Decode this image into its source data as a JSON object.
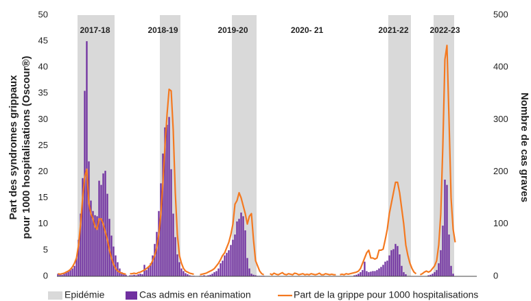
{
  "chart_data": {
    "type": "combo",
    "ylabel": [
      "Part des syndromes grippaux",
      "pour 1000 hospitalisations (Oscour®)"
    ],
    "y2label": "Nombre de cas graves",
    "ylim": [
      0,
      50
    ],
    "yticks": [
      0,
      5,
      10,
      15,
      20,
      25,
      30,
      35,
      40,
      45,
      50
    ],
    "y2lim": [
      0,
      500
    ],
    "y2ticks": [
      0,
      100,
      200,
      300,
      400,
      500
    ],
    "bands": {
      "name": "Epidémie",
      "color": "#d9d9d9",
      "ranges": [
        [
          10,
          27
        ],
        [
          50,
          59
        ],
        [
          85,
          96
        ],
        [
          161,
          171
        ],
        [
          183,
          192
        ]
      ]
    },
    "annotations": [
      {
        "text": "2017-18",
        "x": 18,
        "y": 47
      },
      {
        "text": "2018-19",
        "x": 51,
        "y": 47
      },
      {
        "text": "2019-20",
        "x": 85,
        "y": 47
      },
      {
        "text": "2020- 21",
        "x": 121,
        "y": 47
      },
      {
        "text": "2021-22",
        "x": 163,
        "y": 47
      },
      {
        "text": "2022-23",
        "x": 188,
        "y": 47
      }
    ],
    "series": [
      {
        "name": "Cas admis en réanimation",
        "color": "#7030a0",
        "axis": "y2",
        "kind": "bar",
        "values": [
          5,
          5,
          3,
          5,
          8,
          10,
          12,
          15,
          20,
          35,
          70,
          120,
          188,
          355,
          450,
          220,
          145,
          125,
          117,
          115,
          183,
          175,
          197,
          202,
          158,
          110,
          78,
          57,
          40,
          27,
          15,
          8,
          5,
          3,
          null,
          2,
          2,
          3,
          2,
          4,
          5,
          4,
          22,
          12,
          18,
          25,
          40,
          62,
          85,
          125,
          178,
          235,
          285,
          290,
          305,
          205,
          120,
          75,
          42,
          27,
          15,
          10,
          6,
          4,
          2,
          1,
          1,
          null,
          null,
          1,
          1,
          2,
          1,
          2,
          3,
          5,
          8,
          10,
          15,
          25,
          30,
          40,
          45,
          50,
          60,
          70,
          80,
          105,
          110,
          122,
          115,
          88,
          35,
          15,
          5,
          3,
          2,
          1,
          1,
          1,
          1,
          null,
          null,
          null,
          null,
          null,
          null,
          null,
          null,
          null,
          null,
          null,
          null,
          null,
          null,
          null,
          null,
          null,
          null,
          null,
          null,
          null,
          null,
          null,
          null,
          null,
          null,
          null,
          null,
          null,
          null,
          null,
          null,
          null,
          null,
          null,
          null,
          null,
          null,
          null,
          null,
          null,
          null,
          null,
          2,
          3,
          5,
          8,
          12,
          28,
          10,
          8,
          9,
          10,
          10,
          12,
          15,
          18,
          22,
          28,
          30,
          40,
          50,
          52,
          62,
          58,
          42,
          20,
          8,
          4,
          null,
          null,
          null,
          null,
          null,
          null,
          null,
          null,
          null,
          null,
          2,
          3,
          5,
          8,
          12,
          25,
          50,
          97,
          185,
          175,
          80,
          20,
          5,
          null,
          null,
          null,
          null,
          null,
          null,
          null,
          null,
          null,
          null,
          null
        ]
      },
      {
        "name": "Part de la grippe pour 1000 hospitalisations",
        "color": "#f47920",
        "kind": "line",
        "values": [
          0.5,
          0.4,
          0.5,
          0.6,
          0.8,
          1,
          1.3,
          1.8,
          2.5,
          3.5,
          6,
          10,
          15,
          19,
          20.5,
          14,
          12,
          11,
          9.5,
          9,
          11,
          11,
          10,
          8.5,
          7,
          5,
          3.5,
          2.3,
          1.5,
          1,
          0.8,
          0.6,
          0.5,
          0.4,
          null,
          0.5,
          0.5,
          0.6,
          0.5,
          0.7,
          0.8,
          1,
          1.2,
          1.5,
          1.8,
          2.2,
          3,
          4,
          5.5,
          8,
          12,
          18,
          25,
          31,
          35.8,
          35.5,
          28,
          16,
          8,
          4,
          2.5,
          1.5,
          1,
          0.8,
          0.6,
          0.5,
          0.4,
          null,
          null,
          0.3,
          0.4,
          0.5,
          0.6,
          0.8,
          1,
          1.2,
          1.5,
          2,
          2.5,
          3.2,
          4,
          4.5,
          5.5,
          6.5,
          8,
          10,
          13.8,
          14.5,
          16,
          15,
          13.5,
          12,
          10,
          11.5,
          12,
          7,
          3,
          2,
          1,
          0.5,
          0.3,
          null,
          null,
          0.5,
          0.3,
          0.6,
          0.4,
          0.3,
          0.5,
          0.7,
          0.4,
          0.3,
          0.5,
          0.4,
          0.3,
          0.6,
          0.5,
          0.3,
          0.4,
          0.5,
          0.3,
          0.4,
          0.3,
          0.5,
          0.4,
          0.3,
          0.4,
          0.6,
          0.3,
          0.3,
          0.5,
          0.4,
          0.3,
          0.4,
          0.3,
          0.3,
          null,
          0.3,
          0.4,
          0.3,
          0.5,
          0.4,
          0.5,
          0.6,
          0.7,
          0.8,
          1,
          1.5,
          2.5,
          3.5,
          4.5,
          5,
          3.5,
          3.5,
          3.3,
          3.5,
          5,
          5,
          5.2,
          7,
          9,
          12,
          14,
          16,
          18,
          18,
          16,
          13,
          10,
          6,
          4,
          2.5,
          1.5,
          0.8,
          0.5,
          null,
          0.3,
          0.5,
          0.8,
          1,
          0.8,
          1,
          1.5,
          2,
          3,
          6,
          12,
          25,
          41.5,
          44.2,
          30,
          15,
          9,
          6.5,
          null,
          null,
          null,
          null,
          null,
          null,
          null,
          null,
          null,
          null
        ]
      }
    ]
  }
}
